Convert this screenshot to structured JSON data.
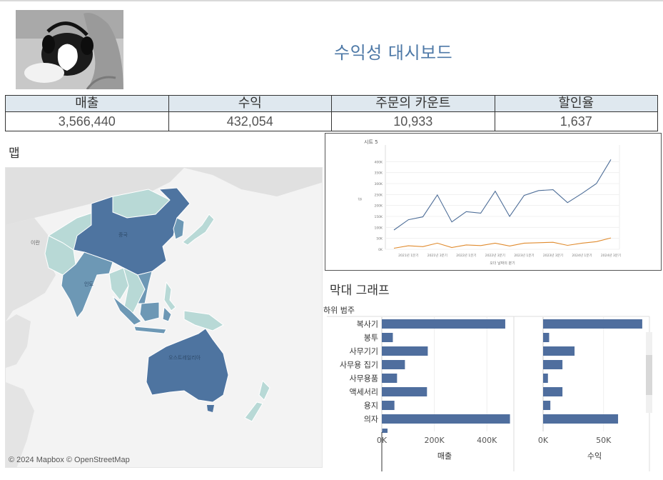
{
  "dashboard": {
    "title": "수익성 대시보드"
  },
  "kpi": [
    {
      "label": "매출",
      "value": "3,566,440"
    },
    {
      "label": "수익",
      "value": "432,054"
    },
    {
      "label": "주문의 카운트",
      "value": "10,933"
    },
    {
      "label": "할인율",
      "value": "1,637"
    }
  ],
  "map": {
    "label": "맵",
    "attribution": "© 2024 Mapbox  © OpenStreetMap",
    "region_labels": {
      "china": "중국",
      "india": "인도",
      "iran": "이란",
      "australia": "오스트레일리아"
    },
    "colors": {
      "dark": "#4e74a0",
      "mid": "#6d98b5",
      "light": "#b8d9d6",
      "land": "#e0e0e0",
      "water": "#f3f3f3"
    }
  },
  "chart_data": [
    {
      "type": "line",
      "title": "시트 5",
      "xlabel": "오더 날짜의 분기",
      "ylabel": "값",
      "ylim": [
        0,
        450000
      ],
      "yticks": [
        0,
        50000,
        100000,
        150000,
        200000,
        250000,
        300000,
        350000,
        400000
      ],
      "ytick_labels": [
        "0K",
        "50K",
        "100K",
        "150K",
        "200K",
        "250K",
        "300K",
        "350K",
        "400K"
      ],
      "x_tick_labels": [
        "2021년 1분기",
        "2021년 3분기",
        "2022년 1분기",
        "2022년 3분기",
        "2023년 1분기",
        "2023년 3분기",
        "2024년 1분기",
        "2024년 3분기"
      ],
      "series": [
        {
          "values": [
            88000,
            135000,
            148000,
            248000,
            125000,
            172000,
            165000,
            265000,
            150000,
            246000,
            268000,
            272000,
            213000,
            255000,
            300000,
            410000
          ],
          "color": "#4e6e98"
        },
        {
          "values": [
            5000,
            16000,
            12000,
            28000,
            8000,
            20000,
            17000,
            28000,
            15000,
            28000,
            30000,
            32000,
            18000,
            28000,
            35000,
            52000
          ],
          "color": "#e08b2e"
        }
      ]
    },
    {
      "type": "bar",
      "title": "막대 그래프",
      "category_header": "하위 범주",
      "categories": [
        "복사기",
        "봉투",
        "사무기기",
        "사무용 집기",
        "사무용품",
        "액세서리",
        "용지",
        "의자"
      ],
      "series": [
        {
          "name": "매출",
          "values": [
            470000,
            42000,
            175000,
            88000,
            58000,
            172000,
            48000,
            488000
          ],
          "ticks": [
            0,
            200000,
            400000
          ],
          "tick_labels": [
            "0K",
            "200K",
            "400K"
          ],
          "max": 500000
        },
        {
          "name": "수익",
          "values": [
            82000,
            5000,
            26000,
            16000,
            4000,
            16000,
            6000,
            62000
          ],
          "ticks": [
            0,
            50000
          ],
          "tick_labels": [
            "0K",
            "50K"
          ],
          "max": 85000
        }
      ],
      "bar_color": "#4f6e9e"
    }
  ]
}
